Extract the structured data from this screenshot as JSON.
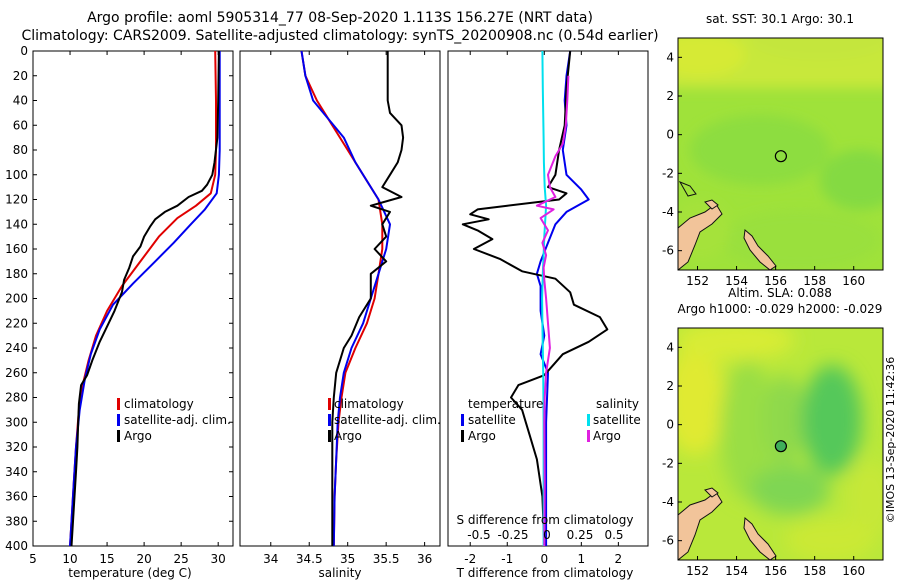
{
  "title_line1": "Argo profile: aoml 5905314_77 08-Sep-2020 1.113S 156.27E (NRT data)",
  "title_line2": "Climatology: CARS2009. Satellite-adjusted climatology: synTS_20200908.nc (0.54d earlier)",
  "credit": "©IMOS 13-Sep-2020 11:42:36",
  "colors": {
    "climatology": "#e00000",
    "satellite": "#0000ee",
    "argo": "#000000",
    "sat_salinity": "#00e0ee",
    "argo_salinity": "#e020e0"
  },
  "depth_ticks": [
    "0",
    "20",
    "40",
    "60",
    "80",
    "100",
    "120",
    "140",
    "160",
    "180",
    "200",
    "220",
    "240",
    "260",
    "280",
    "300",
    "320",
    "340",
    "360",
    "380",
    "400"
  ],
  "chart_data": [
    {
      "type": "line",
      "name": "temperature",
      "xlabel": "temperature (deg C)",
      "xlim": [
        5,
        32
      ],
      "xticks": [
        "5",
        "10",
        "15",
        "20",
        "25",
        "30"
      ],
      "ylim": [
        400,
        0
      ],
      "legend": [
        "climatology",
        "satellite-adj. clim.",
        "Argo"
      ],
      "series": [
        {
          "name": "climatology",
          "color": "#e00000",
          "points": [
            [
              29.6,
              0
            ],
            [
              29.7,
              40
            ],
            [
              29.7,
              80
            ],
            [
              29.6,
              100
            ],
            [
              29,
              115
            ],
            [
              27,
              125
            ],
            [
              24.5,
              135
            ],
            [
              22,
              150
            ],
            [
              19.5,
              170
            ],
            [
              17,
              190
            ],
            [
              15,
              210
            ],
            [
              13.5,
              230
            ],
            [
              12.5,
              250
            ],
            [
              11.7,
              270
            ],
            [
              11.2,
              290
            ],
            [
              10.8,
              320
            ],
            [
              10.5,
              350
            ],
            [
              10.2,
              380
            ],
            [
              10.0,
              400
            ]
          ]
        },
        {
          "name": "satellite-adj. clim.",
          "color": "#0000ee",
          "points": [
            [
              30.2,
              0
            ],
            [
              30.2,
              40
            ],
            [
              30.2,
              80
            ],
            [
              30.1,
              100
            ],
            [
              29.8,
              115
            ],
            [
              28.2,
              128
            ],
            [
              26.3,
              140
            ],
            [
              24,
              155
            ],
            [
              21.5,
              170
            ],
            [
              18.5,
              188
            ],
            [
              15.8,
              205
            ],
            [
              14,
              225
            ],
            [
              12.8,
              245
            ],
            [
              12,
              265
            ],
            [
              11.3,
              290
            ],
            [
              10.8,
              320
            ],
            [
              10.5,
              350
            ],
            [
              10.2,
              380
            ],
            [
              10.0,
              400
            ]
          ]
        },
        {
          "name": "Argo",
          "color": "#000000",
          "points": [
            [
              30.1,
              0
            ],
            [
              30.0,
              40
            ],
            [
              29.9,
              70
            ],
            [
              29.5,
              90
            ],
            [
              29.2,
              100
            ],
            [
              28.5,
              108
            ],
            [
              27.8,
              113
            ],
            [
              26,
              118
            ],
            [
              24.5,
              125
            ],
            [
              22.8,
              130
            ],
            [
              21.5,
              136
            ],
            [
              20.8,
              142
            ],
            [
              20,
              150
            ],
            [
              19.5,
              158
            ],
            [
              18.5,
              166
            ],
            [
              18,
              175
            ],
            [
              17.3,
              185
            ],
            [
              17,
              195
            ],
            [
              16,
              210
            ],
            [
              15.2,
              220
            ],
            [
              14,
              235
            ],
            [
              13,
              250
            ],
            [
              12.3,
              262
            ],
            [
              11.5,
              270
            ],
            [
              11.2,
              285
            ],
            [
              11.1,
              300
            ],
            [
              11,
              320
            ],
            [
              10.8,
              340
            ],
            [
              10.6,
              360
            ],
            [
              10.4,
              380
            ],
            [
              10.2,
              400
            ]
          ]
        }
      ]
    },
    {
      "type": "line",
      "name": "salinity",
      "xlabel": "salinity",
      "xlim": [
        33.6,
        36.2
      ],
      "xticks": [
        "34",
        "34.5",
        "35",
        "35.5",
        "36"
      ],
      "ylim": [
        400,
        0
      ],
      "legend": [
        "climatology",
        "satellite-adj. clim.",
        "Argo"
      ],
      "series": [
        {
          "name": "climatology",
          "color": "#e00000",
          "points": [
            [
              34.4,
              0
            ],
            [
              34.45,
              20
            ],
            [
              34.6,
              40
            ],
            [
              34.8,
              60
            ],
            [
              35.0,
              80
            ],
            [
              35.2,
              100
            ],
            [
              35.4,
              120
            ],
            [
              35.45,
              140
            ],
            [
              35.45,
              160
            ],
            [
              35.4,
              180
            ],
            [
              35.35,
              200
            ],
            [
              35.25,
              220
            ],
            [
              35.1,
              240
            ],
            [
              34.97,
              260
            ],
            [
              34.92,
              280
            ],
            [
              34.88,
              300
            ],
            [
              34.85,
              330
            ],
            [
              34.83,
              360
            ],
            [
              34.82,
              400
            ]
          ]
        },
        {
          "name": "satellite-adj. clim.",
          "color": "#0000ee",
          "points": [
            [
              34.4,
              0
            ],
            [
              34.45,
              20
            ],
            [
              34.55,
              40
            ],
            [
              34.75,
              55
            ],
            [
              34.95,
              70
            ],
            [
              35.1,
              90
            ],
            [
              35.25,
              105
            ],
            [
              35.4,
              120
            ],
            [
              35.55,
              140
            ],
            [
              35.5,
              160
            ],
            [
              35.4,
              180
            ],
            [
              35.3,
              200
            ],
            [
              35.2,
              220
            ],
            [
              35.05,
              240
            ],
            [
              34.95,
              260
            ],
            [
              34.9,
              280
            ],
            [
              34.87,
              300
            ],
            [
              34.85,
              330
            ],
            [
              34.83,
              360
            ],
            [
              34.82,
              400
            ]
          ]
        },
        {
          "name": "Argo",
          "color": "#000000",
          "points": [
            [
              35.52,
              0
            ],
            [
              35.52,
              40
            ],
            [
              35.55,
              50
            ],
            [
              35.7,
              60
            ],
            [
              35.72,
              70
            ],
            [
              35.7,
              80
            ],
            [
              35.65,
              90
            ],
            [
              35.55,
              100
            ],
            [
              35.45,
              110
            ],
            [
              35.7,
              118
            ],
            [
              35.3,
              125
            ],
            [
              35.55,
              130
            ],
            [
              35.45,
              140
            ],
            [
              35.5,
              150
            ],
            [
              35.35,
              160
            ],
            [
              35.5,
              170
            ],
            [
              35.3,
              180
            ],
            [
              35.3,
              200
            ],
            [
              35.15,
              215
            ],
            [
              35.05,
              230
            ],
            [
              34.95,
              240
            ],
            [
              34.85,
              260
            ],
            [
              34.82,
              280
            ],
            [
              34.8,
              300
            ],
            [
              34.8,
              340
            ],
            [
              34.8,
              400
            ]
          ]
        }
      ]
    },
    {
      "type": "line",
      "name": "difference",
      "xlabel": "T difference from climatology",
      "xlabel_top": "S difference from climatology",
      "xlim": [
        -2.6,
        2.8
      ],
      "xticks": [
        "-2",
        "-1",
        "0",
        "1",
        "2"
      ],
      "xticks_top": [
        "-0.5",
        "-0.25",
        "0",
        "0.25",
        "0.5"
      ],
      "ylim": [
        400,
        0
      ],
      "legend_temperature": {
        "title": "temperature",
        "items": [
          "satellite",
          "Argo"
        ]
      },
      "legend_salinity": {
        "title": "salinity",
        "items": [
          "satellite",
          "Argo"
        ]
      },
      "series": [
        {
          "name": "T satellite",
          "color": "#0000ee",
          "points": [
            [
              0.7,
              0
            ],
            [
              0.6,
              20
            ],
            [
              0.55,
              40
            ],
            [
              0.6,
              60
            ],
            [
              0.5,
              80
            ],
            [
              0.6,
              100
            ],
            [
              1.0,
              112
            ],
            [
              1.2,
              120
            ],
            [
              0.6,
              130
            ],
            [
              0.3,
              140
            ],
            [
              0.1,
              155
            ],
            [
              -0.1,
              170
            ],
            [
              -0.2,
              180
            ],
            [
              -0.1,
              190
            ],
            [
              -0.1,
              210
            ],
            [
              0,
              230
            ],
            [
              -0.1,
              245
            ],
            [
              0.1,
              260
            ],
            [
              0.05,
              300
            ],
            [
              0.05,
              340
            ],
            [
              0.05,
              400
            ]
          ]
        },
        {
          "name": "T Argo",
          "color": "#000000",
          "points": [
            [
              0.7,
              0
            ],
            [
              0.6,
              30
            ],
            [
              0.55,
              60
            ],
            [
              0.4,
              80
            ],
            [
              0.3,
              100
            ],
            [
              0.1,
              110
            ],
            [
              0.6,
              115
            ],
            [
              0.4,
              120
            ],
            [
              -1.0,
              125
            ],
            [
              -1.8,
              128
            ],
            [
              -2.0,
              132
            ],
            [
              -1.5,
              136
            ],
            [
              -2.2,
              140
            ],
            [
              -1.8,
              145
            ],
            [
              -1.4,
              152
            ],
            [
              -1.9,
              160
            ],
            [
              -1.2,
              168
            ],
            [
              -0.6,
              178
            ],
            [
              0.3,
              184
            ],
            [
              0.7,
              195
            ],
            [
              0.8,
              205
            ],
            [
              1.5,
              215
            ],
            [
              1.7,
              225
            ],
            [
              1.2,
              235
            ],
            [
              0.5,
              245
            ],
            [
              0.0,
              262
            ],
            [
              -0.7,
              270
            ],
            [
              -0.9,
              280
            ],
            [
              -0.6,
              290
            ],
            [
              -0.5,
              300
            ],
            [
              -0.4,
              310
            ],
            [
              -0.2,
              330
            ],
            [
              -0.05,
              360
            ],
            [
              0.0,
              400
            ]
          ]
        },
        {
          "name": "S satellite",
          "color": "#00e0ee",
          "points": [
            [
              -0.05,
              0
            ],
            [
              -0.04,
              30
            ],
            [
              -0.03,
              50
            ],
            [
              -0.02,
              70
            ],
            [
              -0.01,
              90
            ],
            [
              0.01,
              110
            ],
            [
              0.05,
              125
            ],
            [
              0.02,
              140
            ],
            [
              0.0,
              150
            ],
            [
              -0.02,
              165
            ],
            [
              -0.04,
              180
            ],
            [
              -0.06,
              200
            ],
            [
              -0.05,
              220
            ],
            [
              -0.04,
              240
            ],
            [
              -0.03,
              260
            ],
            [
              -0.02,
              300
            ],
            [
              -0.02,
              340
            ],
            [
              -0.02,
              400
            ]
          ]
        },
        {
          "name": "S Argo",
          "color": "#e020e0",
          "points": [
            [
              0.65,
              20
            ],
            [
              0.62,
              40
            ],
            [
              0.58,
              60
            ],
            [
              0.5,
              75
            ],
            [
              0.3,
              85
            ],
            [
              0.1,
              100
            ],
            [
              0.15,
              110
            ],
            [
              0.3,
              118
            ],
            [
              -0.2,
              125
            ],
            [
              0.25,
              128
            ],
            [
              -0.1,
              135
            ],
            [
              0.1,
              145
            ],
            [
              -0.05,
              155
            ],
            [
              0.05,
              165
            ],
            [
              -0.02,
              175
            ],
            [
              0.0,
              185
            ],
            [
              0.05,
              200
            ],
            [
              0.1,
              220
            ],
            [
              0.15,
              240
            ],
            [
              0.05,
              260
            ],
            [
              0.01,
              280
            ],
            [
              0.0,
              300
            ],
            [
              0.01,
              350
            ],
            [
              0.0,
              400
            ]
          ]
        }
      ]
    },
    {
      "type": "heatmap",
      "name": "map_sst",
      "title": "sat. SST: 30.1 Argo: 30.1",
      "xlim": [
        151,
        161.5
      ],
      "ylim": [
        -7,
        5
      ],
      "xticks": [
        "152",
        "154",
        "156",
        "158",
        "160"
      ],
      "yticks": [
        "4",
        "2",
        "0",
        "-2",
        "-4",
        "-6"
      ],
      "marker": {
        "lon": 156.27,
        "lat": -1.113
      }
    },
    {
      "type": "heatmap",
      "name": "map_sla",
      "title_line1": "Altim. SLA: 0.088",
      "title_line2": "Argo h1000: -0.029 h2000: -0.029",
      "xlim": [
        151,
        161.5
      ],
      "ylim": [
        -7,
        5
      ],
      "xticks": [
        "152",
        "154",
        "156",
        "158",
        "160"
      ],
      "yticks": [
        "4",
        "2",
        "0",
        "-2",
        "-4",
        "-6"
      ],
      "marker": {
        "lon": 156.27,
        "lat": -1.113
      }
    }
  ]
}
